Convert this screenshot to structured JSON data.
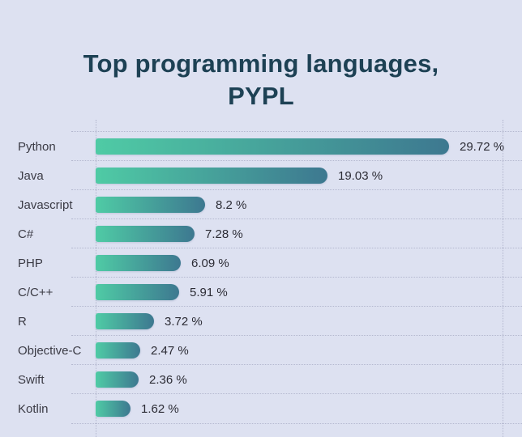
{
  "page": {
    "background": "#dde1f1"
  },
  "header": {
    "title_line1": "Top programming languages,",
    "title_line2": "PYPL"
  },
  "chart_data": {
    "type": "bar",
    "orientation": "horizontal",
    "title": "Top programming languages, PYPL",
    "xlabel": "",
    "ylabel": "",
    "categories": [
      "Python",
      "Java",
      "Javascript",
      "C#",
      "PHP",
      "C/C++",
      "R",
      "Objective-C",
      "Swift",
      "Kotlin"
    ],
    "values": [
      29.72,
      19.03,
      8.2,
      7.28,
      6.09,
      5.91,
      3.72,
      2.47,
      2.36,
      1.62
    ],
    "value_labels": [
      "29.72 %",
      "19.03 %",
      "8.2 %",
      "7.28 %",
      "6.09 %",
      "5.91 %",
      "3.72 %",
      "2.47 %",
      "2.36 %",
      "1.62 %"
    ],
    "xlim": [
      0,
      31
    ],
    "grid": "dotted horizontal row separators and two vertical axis lines",
    "legend": "none",
    "colors": {
      "background": "#dde1f1",
      "title_text": "#1d4154",
      "label_text": "#3b3b45",
      "value_text": "#2c2c35",
      "gridline": "#b4b8cf",
      "bar_gradient_start": "#4fcba5",
      "bar_gradient_end": "#3d7890"
    }
  }
}
